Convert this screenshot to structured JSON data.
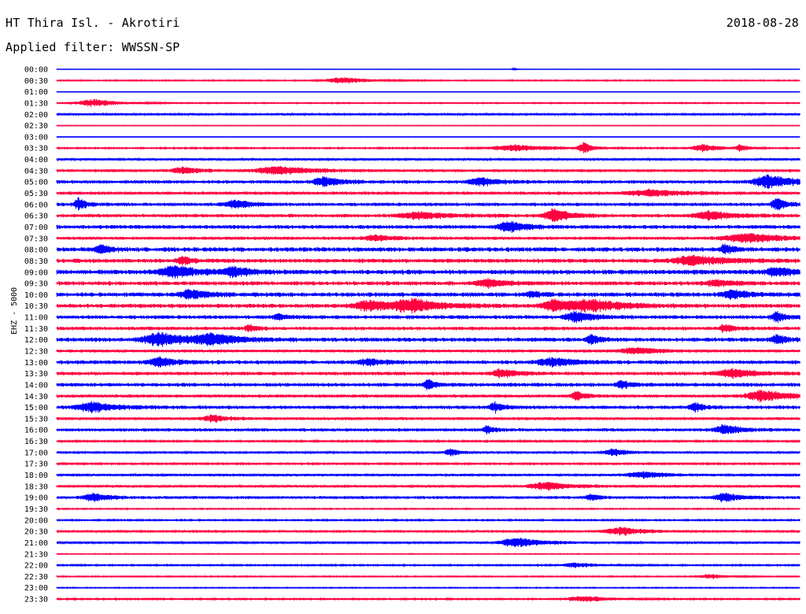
{
  "header": {
    "station": "HT Thira Isl. - Akrotiri",
    "date": "2018-08-28",
    "filter_text": "Applied filter: WWSSN-SP"
  },
  "colors": {
    "blue": "#0000ff",
    "red": "#ff0040",
    "background": "#ffffff"
  },
  "chart_data": {
    "type": "line",
    "title": "HT Thira Isl. - Akrotiri",
    "ylabel": "EHZ - 5000",
    "grid": false,
    "categories": [
      "00:00",
      "00:30",
      "01:00",
      "01:30",
      "02:00",
      "02:30",
      "03:00",
      "03:30",
      "04:00",
      "04:30",
      "05:00",
      "05:30",
      "06:00",
      "06:30",
      "07:00",
      "07:30",
      "08:00",
      "08:30",
      "09:00",
      "09:30",
      "10:00",
      "10:30",
      "11:00",
      "11:30",
      "12:00",
      "12:30",
      "13:00",
      "13:30",
      "14:00",
      "14:30",
      "15:00",
      "15:30",
      "16:00",
      "16:30",
      "17:00",
      "17:30",
      "18:00",
      "18:30",
      "19:00",
      "19:30",
      "20:00",
      "20:30",
      "21:00",
      "21:30",
      "22:00",
      "22:30",
      "23:00",
      "23:30"
    ],
    "line_colors": [
      "blue",
      "red"
    ],
    "noise_level": [
      0.2,
      0.8,
      0.3,
      0.8,
      1.4,
      0.4,
      0.3,
      1.0,
      1.6,
      2.0,
      2.4,
      2.2,
      2.4,
      2.4,
      2.6,
      2.2,
      3.0,
      2.8,
      3.2,
      2.8,
      3.0,
      2.8,
      2.6,
      2.4,
      2.8,
      2.0,
      2.6,
      2.4,
      2.6,
      2.2,
      2.4,
      2.0,
      2.2,
      1.2,
      1.6,
      1.2,
      1.6,
      1.8,
      2.0,
      0.8,
      1.0,
      1.4,
      1.6,
      0.6,
      1.0,
      0.8,
      0.7,
      1.0
    ],
    "events": [
      {
        "row": 0,
        "t": 0.615,
        "a": 2,
        "w": 0.003
      },
      {
        "row": 1,
        "t": 0.385,
        "a": 4,
        "w": 0.03
      },
      {
        "row": 3,
        "t": 0.05,
        "a": 5,
        "w": 0.03
      },
      {
        "row": 7,
        "t": 0.62,
        "a": 4,
        "w": 0.05
      },
      {
        "row": 7,
        "t": 0.71,
        "a": 7,
        "w": 0.01
      },
      {
        "row": 7,
        "t": 0.87,
        "a": 5,
        "w": 0.02
      },
      {
        "row": 7,
        "t": 0.92,
        "a": 4,
        "w": 0.01
      },
      {
        "row": 9,
        "t": 0.17,
        "a": 4,
        "w": 0.02
      },
      {
        "row": 9,
        "t": 0.3,
        "a": 5,
        "w": 0.04
      },
      {
        "row": 10,
        "t": 0.36,
        "a": 6,
        "w": 0.02
      },
      {
        "row": 10,
        "t": 0.57,
        "a": 5,
        "w": 0.02
      },
      {
        "row": 10,
        "t": 0.96,
        "a": 8,
        "w": 0.03
      },
      {
        "row": 11,
        "t": 0.8,
        "a": 4,
        "w": 0.04
      },
      {
        "row": 12,
        "t": 0.03,
        "a": 8,
        "w": 0.008
      },
      {
        "row": 12,
        "t": 0.24,
        "a": 5,
        "w": 0.02
      },
      {
        "row": 12,
        "t": 0.97,
        "a": 9,
        "w": 0.01
      },
      {
        "row": 13,
        "t": 0.49,
        "a": 4,
        "w": 0.04
      },
      {
        "row": 13,
        "t": 0.67,
        "a": 8,
        "w": 0.02
      },
      {
        "row": 13,
        "t": 0.88,
        "a": 5,
        "w": 0.03
      },
      {
        "row": 14,
        "t": 0.61,
        "a": 7,
        "w": 0.02
      },
      {
        "row": 15,
        "t": 0.43,
        "a": 4,
        "w": 0.02
      },
      {
        "row": 15,
        "t": 0.93,
        "a": 6,
        "w": 0.04
      },
      {
        "row": 16,
        "t": 0.06,
        "a": 6,
        "w": 0.01
      },
      {
        "row": 16,
        "t": 0.9,
        "a": 6,
        "w": 0.01
      },
      {
        "row": 17,
        "t": 0.17,
        "a": 6,
        "w": 0.01
      },
      {
        "row": 17,
        "t": 0.86,
        "a": 6,
        "w": 0.04
      },
      {
        "row": 18,
        "t": 0.16,
        "a": 7,
        "w": 0.03
      },
      {
        "row": 18,
        "t": 0.24,
        "a": 5,
        "w": 0.02
      },
      {
        "row": 18,
        "t": 0.97,
        "a": 5,
        "w": 0.02
      },
      {
        "row": 19,
        "t": 0.58,
        "a": 5,
        "w": 0.02
      },
      {
        "row": 19,
        "t": 0.89,
        "a": 4,
        "w": 0.02
      },
      {
        "row": 20,
        "t": 0.18,
        "a": 6,
        "w": 0.02
      },
      {
        "row": 20,
        "t": 0.64,
        "a": 4,
        "w": 0.01
      },
      {
        "row": 20,
        "t": 0.91,
        "a": 5,
        "w": 0.02
      },
      {
        "row": 21,
        "t": 0.42,
        "a": 7,
        "w": 0.025
      },
      {
        "row": 21,
        "t": 0.48,
        "a": 8,
        "w": 0.035
      },
      {
        "row": 21,
        "t": 0.67,
        "a": 8,
        "w": 0.02
      },
      {
        "row": 21,
        "t": 0.72,
        "a": 7,
        "w": 0.04
      },
      {
        "row": 22,
        "t": 0.3,
        "a": 4,
        "w": 0.01
      },
      {
        "row": 22,
        "t": 0.7,
        "a": 7,
        "w": 0.02
      },
      {
        "row": 22,
        "t": 0.97,
        "a": 7,
        "w": 0.01
      },
      {
        "row": 23,
        "t": 0.26,
        "a": 4,
        "w": 0.01
      },
      {
        "row": 23,
        "t": 0.9,
        "a": 5,
        "w": 0.01
      },
      {
        "row": 24,
        "t": 0.14,
        "a": 9,
        "w": 0.03
      },
      {
        "row": 24,
        "t": 0.21,
        "a": 7,
        "w": 0.03
      },
      {
        "row": 24,
        "t": 0.72,
        "a": 6,
        "w": 0.01
      },
      {
        "row": 24,
        "t": 0.97,
        "a": 6,
        "w": 0.01
      },
      {
        "row": 25,
        "t": 0.78,
        "a": 4,
        "w": 0.03
      },
      {
        "row": 26,
        "t": 0.14,
        "a": 6,
        "w": 0.02
      },
      {
        "row": 26,
        "t": 0.42,
        "a": 4,
        "w": 0.02
      },
      {
        "row": 26,
        "t": 0.67,
        "a": 5,
        "w": 0.03
      },
      {
        "row": 27,
        "t": 0.6,
        "a": 5,
        "w": 0.02
      },
      {
        "row": 27,
        "t": 0.91,
        "a": 5,
        "w": 0.03
      },
      {
        "row": 28,
        "t": 0.5,
        "a": 7,
        "w": 0.008
      },
      {
        "row": 28,
        "t": 0.76,
        "a": 5,
        "w": 0.01
      },
      {
        "row": 29,
        "t": 0.7,
        "a": 6,
        "w": 0.01
      },
      {
        "row": 29,
        "t": 0.95,
        "a": 7,
        "w": 0.03
      },
      {
        "row": 30,
        "t": 0.05,
        "a": 6,
        "w": 0.03
      },
      {
        "row": 30,
        "t": 0.59,
        "a": 6,
        "w": 0.01
      },
      {
        "row": 30,
        "t": 0.86,
        "a": 6,
        "w": 0.01
      },
      {
        "row": 31,
        "t": 0.21,
        "a": 4,
        "w": 0.02
      },
      {
        "row": 32,
        "t": 0.58,
        "a": 6,
        "w": 0.008
      },
      {
        "row": 32,
        "t": 0.9,
        "a": 6,
        "w": 0.02
      },
      {
        "row": 34,
        "t": 0.53,
        "a": 5,
        "w": 0.01
      },
      {
        "row": 34,
        "t": 0.75,
        "a": 4,
        "w": 0.02
      },
      {
        "row": 36,
        "t": 0.79,
        "a": 4,
        "w": 0.03
      },
      {
        "row": 37,
        "t": 0.66,
        "a": 5,
        "w": 0.03
      },
      {
        "row": 38,
        "t": 0.05,
        "a": 5,
        "w": 0.02
      },
      {
        "row": 38,
        "t": 0.72,
        "a": 4,
        "w": 0.01
      },
      {
        "row": 38,
        "t": 0.9,
        "a": 5,
        "w": 0.02
      },
      {
        "row": 41,
        "t": 0.76,
        "a": 5,
        "w": 0.03
      },
      {
        "row": 42,
        "t": 0.62,
        "a": 6,
        "w": 0.03
      },
      {
        "row": 44,
        "t": 0.7,
        "a": 3,
        "w": 0.03
      },
      {
        "row": 45,
        "t": 0.88,
        "a": 3,
        "w": 0.02
      },
      {
        "row": 47,
        "t": 0.71,
        "a": 4,
        "w": 0.03
      }
    ]
  }
}
